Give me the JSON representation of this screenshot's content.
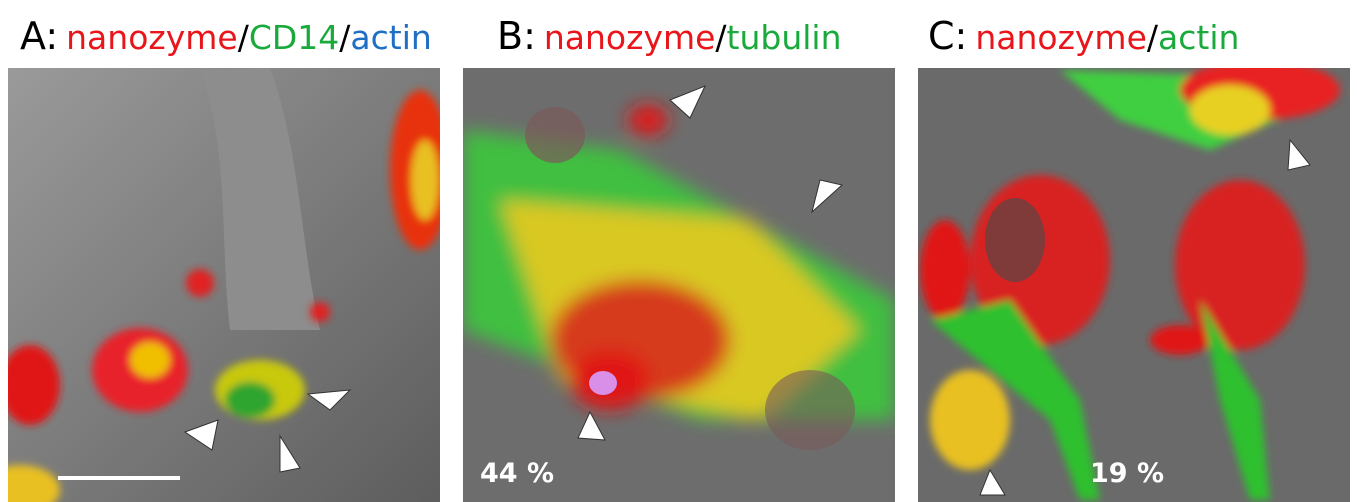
{
  "panels": [
    {
      "title": {
        "letter": "A:",
        "parts": [
          "nanozyme",
          "/",
          "CD14",
          "/",
          "actin"
        ]
      }
    },
    {
      "title": {
        "letter": "B:",
        "parts": [
          "nanozyme",
          "/",
          "tubulin"
        ]
      },
      "annotation": "44 %"
    },
    {
      "title": {
        "letter": "C:",
        "parts": [
          "nanozyme",
          "/",
          "actin"
        ]
      },
      "annotation": "19 %"
    }
  ]
}
